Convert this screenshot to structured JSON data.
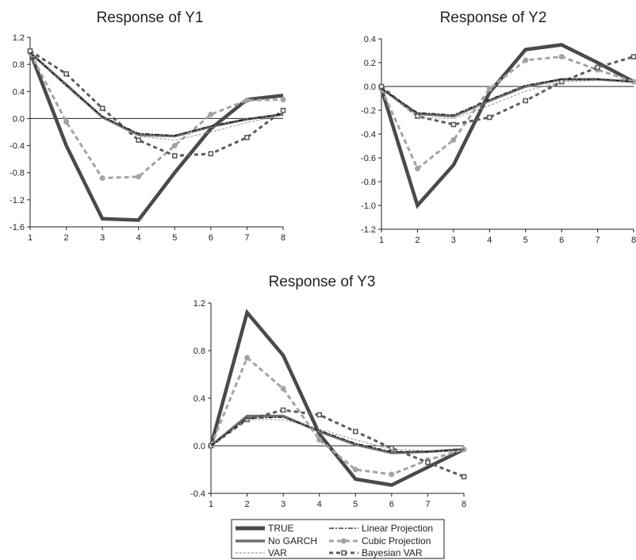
{
  "chart_data": [
    {
      "type": "line",
      "title": "Response of Y1",
      "x": [
        1,
        2,
        3,
        4,
        5,
        6,
        7,
        8
      ],
      "ylim": [
        -1.6,
        1.2
      ],
      "yticks": [
        "1.2",
        "0.8",
        "0.4",
        "0.0",
        "-0.4",
        "-0.8",
        "-1.2",
        "-1.6"
      ],
      "xticks": [
        "1",
        "2",
        "3",
        "4",
        "5",
        "6",
        "7",
        "8"
      ],
      "series": [
        {
          "name": "TRUE",
          "values": [
            0.98,
            -0.4,
            -1.48,
            -1.5,
            -0.8,
            -0.15,
            0.28,
            0.34
          ]
        },
        {
          "name": "No GARCH",
          "values": [
            0.97,
            0.5,
            0.02,
            -0.24,
            -0.26,
            -0.12,
            -0.01,
            0.06
          ]
        },
        {
          "name": "VAR",
          "values": [
            0.96,
            0.47,
            0.0,
            -0.26,
            -0.32,
            -0.2,
            -0.06,
            0.05
          ]
        },
        {
          "name": "Linear Projection",
          "values": [
            0.97,
            0.49,
            0.03,
            -0.22,
            -0.25,
            -0.11,
            -0.01,
            0.07
          ]
        },
        {
          "name": "Cubic Projection",
          "values": [
            0.97,
            -0.05,
            -0.88,
            -0.86,
            -0.4,
            0.06,
            0.27,
            0.28
          ]
        },
        {
          "name": "Bayesian VAR",
          "values": [
            1.0,
            0.66,
            0.15,
            -0.32,
            -0.55,
            -0.52,
            -0.28,
            0.12
          ]
        }
      ]
    },
    {
      "type": "line",
      "title": "Response of Y2",
      "x": [
        1,
        2,
        3,
        4,
        5,
        6,
        7,
        8
      ],
      "ylim": [
        -1.2,
        0.4
      ],
      "yticks": [
        "0.4",
        "0.2",
        "0.0",
        "-0.2",
        "-0.4",
        "-0.6",
        "-0.8",
        "-1.0",
        "-1.2"
      ],
      "xticks": [
        "1",
        "2",
        "3",
        "4",
        "5",
        "6",
        "7",
        "8"
      ],
      "series": [
        {
          "name": "TRUE",
          "values": [
            -0.02,
            -1.0,
            -0.66,
            -0.05,
            0.31,
            0.35,
            0.2,
            0.04
          ]
        },
        {
          "name": "No GARCH",
          "values": [
            -0.02,
            -0.23,
            -0.25,
            -0.12,
            0.0,
            0.06,
            0.06,
            0.04
          ]
        },
        {
          "name": "VAR",
          "values": [
            -0.02,
            -0.26,
            -0.27,
            -0.16,
            -0.04,
            0.04,
            0.05,
            0.04
          ]
        },
        {
          "name": "Linear Projection",
          "values": [
            -0.02,
            -0.22,
            -0.24,
            -0.11,
            0.01,
            0.06,
            0.06,
            0.04
          ]
        },
        {
          "name": "Cubic Projection",
          "values": [
            -0.02,
            -0.69,
            -0.45,
            -0.02,
            0.22,
            0.25,
            0.14,
            0.04
          ]
        },
        {
          "name": "Bayesian VAR",
          "values": [
            0.0,
            -0.25,
            -0.32,
            -0.26,
            -0.12,
            0.04,
            0.16,
            0.25
          ]
        }
      ]
    },
    {
      "type": "line",
      "title": "Response of Y3",
      "x": [
        1,
        2,
        3,
        4,
        5,
        6,
        7,
        8
      ],
      "ylim": [
        -0.4,
        1.2
      ],
      "yticks": [
        "1.2",
        "0.8",
        "0.4",
        "0.0",
        "-0.4"
      ],
      "xticks": [
        "1",
        "2",
        "3",
        "4",
        "5",
        "6",
        "7",
        "8"
      ],
      "series": [
        {
          "name": "TRUE",
          "values": [
            0.0,
            1.12,
            0.76,
            0.1,
            -0.28,
            -0.33,
            -0.18,
            -0.03
          ]
        },
        {
          "name": "No GARCH",
          "values": [
            0.0,
            0.25,
            0.25,
            0.12,
            0.01,
            -0.06,
            -0.05,
            -0.03
          ]
        },
        {
          "name": "VAR",
          "values": [
            0.0,
            0.22,
            0.22,
            0.14,
            0.05,
            -0.03,
            -0.04,
            -0.02
          ]
        },
        {
          "name": "Linear Projection",
          "values": [
            0.0,
            0.23,
            0.24,
            0.13,
            0.02,
            -0.05,
            -0.05,
            -0.03
          ]
        },
        {
          "name": "Cubic Projection",
          "values": [
            0.0,
            0.74,
            0.48,
            0.05,
            -0.2,
            -0.24,
            -0.12,
            -0.03
          ]
        },
        {
          "name": "Bayesian VAR",
          "values": [
            0.0,
            0.22,
            0.3,
            0.26,
            0.12,
            -0.02,
            -0.14,
            -0.26
          ]
        }
      ]
    }
  ],
  "legend": {
    "items": [
      {
        "label": "TRUE"
      },
      {
        "label": "No GARCH"
      },
      {
        "label": "VAR"
      },
      {
        "label": "Linear Projection"
      },
      {
        "label": "Cubic Projection"
      },
      {
        "label": "Bayesian VAR"
      }
    ]
  },
  "styles": {
    "TRUE": {
      "color": "#4a4a4a"
    },
    "No GARCH": {
      "color": "#6e6e6e"
    },
    "VAR": {
      "color": "#9c9c9c"
    },
    "Linear Projection": {
      "color": "#111111"
    },
    "Cubic Projection": {
      "color": "#a3a3a3",
      "marker": "circle"
    },
    "Bayesian VAR": {
      "color": "#5c5c5c",
      "marker": "square"
    }
  }
}
